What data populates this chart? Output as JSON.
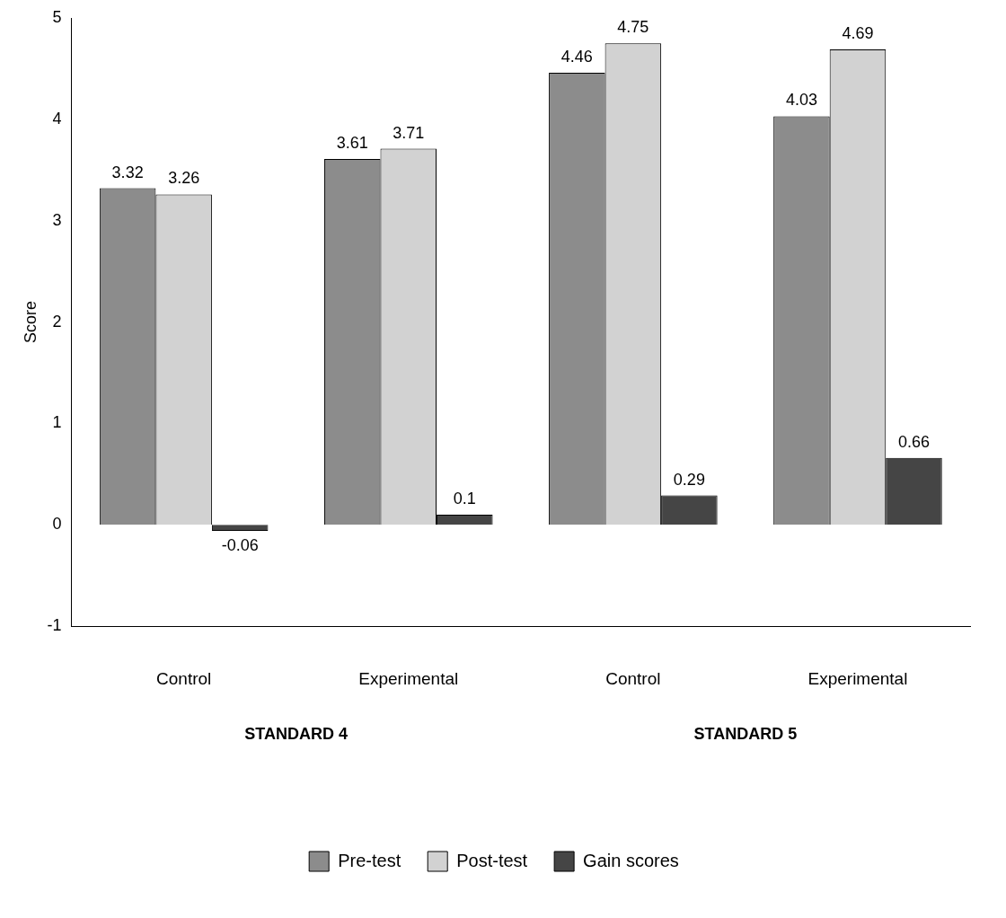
{
  "chart_data": {
    "type": "bar",
    "ylabel": "Score",
    "categories": [
      "Control",
      "Experimental",
      "Control",
      "Experimental"
    ],
    "series": [
      {
        "name": "Pre-test",
        "color": "#8c8c8c",
        "values": [
          3.32,
          3.61,
          4.46,
          4.03
        ]
      },
      {
        "name": "Post-test",
        "color": "#d2d2d2",
        "values": [
          3.26,
          3.71,
          4.75,
          4.69
        ]
      },
      {
        "name": "Gain scores",
        "color": "#454545",
        "values": [
          -0.06,
          0.1,
          0.29,
          0.66
        ]
      }
    ],
    "ylim": [
      -1,
      5
    ],
    "yticks": [
      -1,
      0,
      1,
      2,
      3,
      4,
      5
    ],
    "data_labels": true,
    "legend": "bottom",
    "annotations": [
      "STANDARD 4",
      "STANDARD 5"
    ]
  }
}
